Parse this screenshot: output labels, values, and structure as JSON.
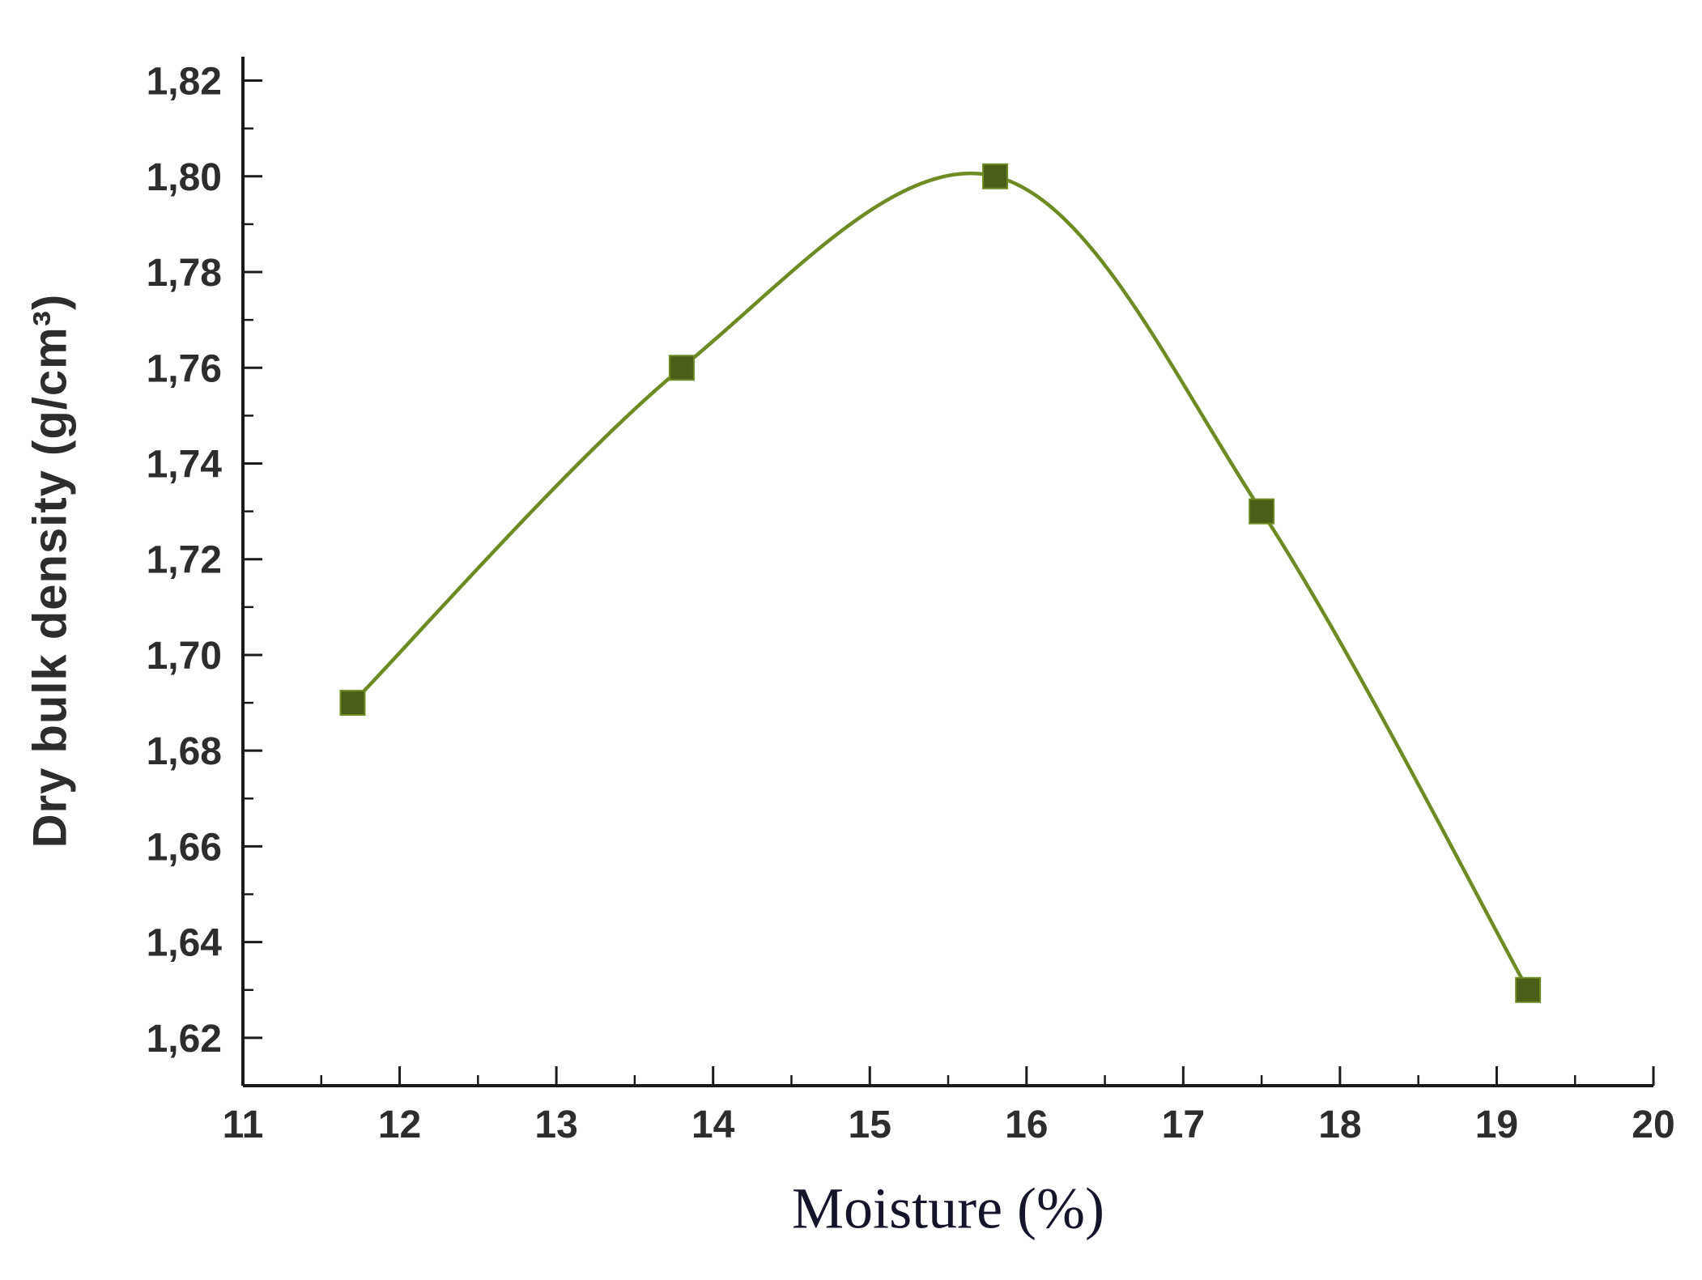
{
  "chart_data": {
    "type": "line",
    "title": "",
    "xlabel": "Moisture (%)",
    "ylabel": "Dry bulk density (g/cm³)",
    "x": [
      11.7,
      13.8,
      15.8,
      17.5,
      19.2
    ],
    "y": [
      1.69,
      1.76,
      1.8,
      1.73,
      1.63
    ],
    "xlim": [
      11,
      20
    ],
    "ylim": [
      1.61,
      1.825
    ],
    "x_ticks": [
      11,
      12,
      13,
      14,
      15,
      16,
      17,
      18,
      19,
      20
    ],
    "x_tick_labels": [
      "11",
      "12",
      "13",
      "14",
      "15",
      "16",
      "17",
      "18",
      "19",
      "20"
    ],
    "x_minor_ticks": [
      11.5,
      12.5,
      13.5,
      14.5,
      15.5,
      16.5,
      17.5,
      18.5,
      19.5
    ],
    "y_ticks": [
      1.62,
      1.64,
      1.66,
      1.68,
      1.7,
      1.72,
      1.74,
      1.76,
      1.78,
      1.8,
      1.82
    ],
    "y_tick_labels": [
      "1,62",
      "1,64",
      "1,66",
      "1,68",
      "1,70",
      "1,72",
      "1,74",
      "1,76",
      "1,78",
      "1,80",
      "1,82"
    ],
    "y_minor_ticks": [
      1.61,
      1.63,
      1.65,
      1.67,
      1.69,
      1.71,
      1.73,
      1.75,
      1.77,
      1.79,
      1.81
    ],
    "grid": false,
    "legend": null,
    "line_color": "#6e8b23",
    "marker": "square",
    "marker_color": "#4a5e17",
    "axis_color": "#1a1a1a"
  }
}
